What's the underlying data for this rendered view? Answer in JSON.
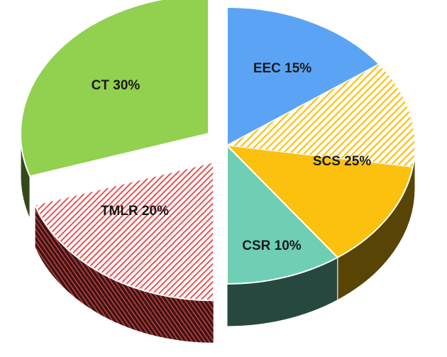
{
  "chart_data": {
    "type": "pie",
    "title": "",
    "style": "3d-exploded",
    "slices": [
      {
        "label": "EEC",
        "value": 15,
        "color": "#5ba4f5",
        "pattern": "solid",
        "exploded": false,
        "display": "EEC 15%"
      },
      {
        "label": "SCS",
        "value": 25,
        "color": "#fcc10e",
        "pattern": "half-hatched",
        "exploded": false,
        "display": "SCS 25%"
      },
      {
        "label": "CSR",
        "value": 10,
        "color": "#6fcfb5",
        "pattern": "solid",
        "exploded": false,
        "display": "CSR 10%"
      },
      {
        "label": "TMLR",
        "value": 20,
        "color": "#f03e3e",
        "pattern": "hatched",
        "exploded": true,
        "display": "TMLR 20%"
      },
      {
        "label": "CT",
        "value": 30,
        "color": "#92d050",
        "pattern": "solid",
        "exploded": true,
        "display": "CT 30%"
      }
    ]
  }
}
